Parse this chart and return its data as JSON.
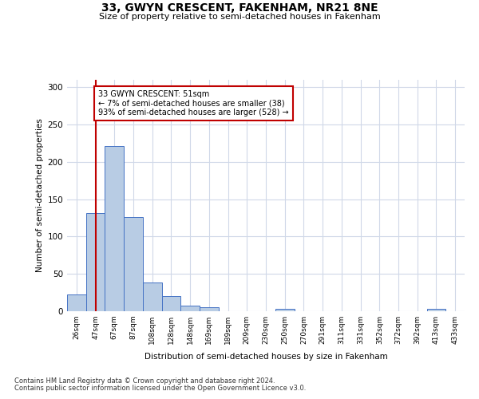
{
  "title1": "33, GWYN CRESCENT, FAKENHAM, NR21 8NE",
  "title2": "Size of property relative to semi-detached houses in Fakenham",
  "xlabel": "Distribution of semi-detached houses by size in Fakenham",
  "ylabel": "Number of semi-detached properties",
  "categories": [
    "26sqm",
    "47sqm",
    "67sqm",
    "87sqm",
    "108sqm",
    "128sqm",
    "148sqm",
    "169sqm",
    "189sqm",
    "209sqm",
    "230sqm",
    "250sqm",
    "270sqm",
    "291sqm",
    "311sqm",
    "331sqm",
    "352sqm",
    "372sqm",
    "392sqm",
    "413sqm",
    "433sqm"
  ],
  "values": [
    22,
    131,
    221,
    126,
    38,
    20,
    8,
    5,
    0,
    0,
    0,
    3,
    0,
    0,
    0,
    0,
    0,
    0,
    0,
    3,
    0
  ],
  "bar_color": "#b8cce4",
  "bar_edgecolor": "#4472c4",
  "highlight_index": 1,
  "highlight_line_color": "#c00000",
  "annotation_text": "33 GWYN CRESCENT: 51sqm\n← 7% of semi-detached houses are smaller (38)\n93% of semi-detached houses are larger (528) →",
  "annotation_box_edgecolor": "#c00000",
  "annotation_box_facecolor": "#ffffff",
  "ylim": [
    0,
    310
  ],
  "yticks": [
    0,
    50,
    100,
    150,
    200,
    250,
    300
  ],
  "footer1": "Contains HM Land Registry data © Crown copyright and database right 2024.",
  "footer2": "Contains public sector information licensed under the Open Government Licence v3.0.",
  "bg_color": "#ffffff",
  "grid_color": "#d0d8e8"
}
